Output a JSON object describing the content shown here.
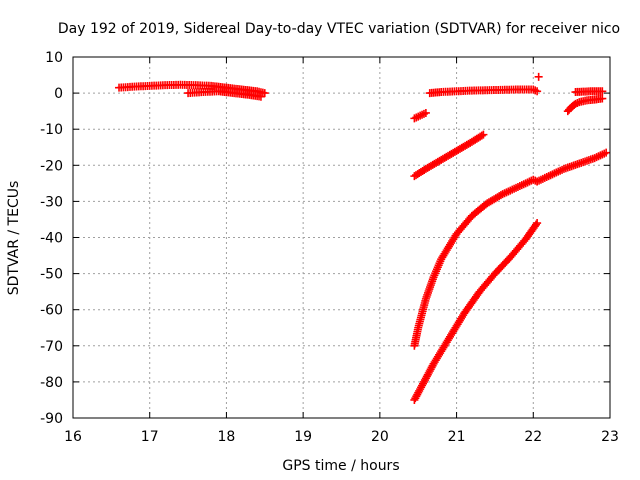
{
  "chart_data": {
    "type": "scatter",
    "title": "Day 192 of 2019, Sidereal Day-to-day VTEC variation (SDTVAR) for receiver nico",
    "xlabel": "GPS time / hours",
    "ylabel": "SDTVAR / TECUs",
    "xlim": [
      16,
      23
    ],
    "ylim": [
      -90,
      10
    ],
    "xticks": [
      16,
      17,
      18,
      19,
      20,
      21,
      22,
      23
    ],
    "yticks": [
      10,
      0,
      -10,
      -20,
      -30,
      -40,
      -50,
      -60,
      -70,
      -80,
      -90
    ],
    "grid": true,
    "marker": "plus",
    "color": "#ff0000",
    "series": [
      {
        "x": [
          16.6,
          16.8,
          17.0,
          17.2,
          17.4,
          17.6,
          17.8,
          18.0,
          18.2,
          18.4,
          18.5
        ],
        "y": [
          1.5,
          1.8,
          2.0,
          2.2,
          2.3,
          2.2,
          2.0,
          1.5,
          1.0,
          0.5,
          0.0
        ]
      },
      {
        "x": [
          17.5,
          17.7,
          17.9,
          18.1,
          18.3,
          18.45
        ],
        "y": [
          0.0,
          0.3,
          0.5,
          0.0,
          -0.5,
          -1.0
        ]
      },
      {
        "x": [
          20.45,
          20.5,
          20.55,
          20.6
        ],
        "y": [
          -7.0,
          -6.5,
          -6.0,
          -5.5
        ]
      },
      {
        "x": [
          20.65,
          20.8,
          21.0,
          21.2,
          21.4,
          21.6,
          21.8,
          22.0,
          22.05
        ],
        "y": [
          0.0,
          0.3,
          0.5,
          0.7,
          0.8,
          0.9,
          1.0,
          1.0,
          0.5
        ]
      },
      {
        "x": [
          22.07
        ],
        "y": [
          4.5
        ]
      },
      {
        "x": [
          22.45,
          22.5,
          22.55,
          22.6,
          22.7,
          22.8,
          22.9
        ],
        "y": [
          -5.0,
          -3.8,
          -3.0,
          -2.5,
          -2.0,
          -1.8,
          -1.5
        ]
      },
      {
        "x": [
          22.55,
          22.65,
          22.75,
          22.85,
          22.9
        ],
        "y": [
          0.3,
          0.4,
          0.5,
          0.5,
          0.5
        ]
      },
      {
        "x": [
          20.45,
          20.6,
          20.8,
          21.0,
          21.2,
          21.35
        ],
        "y": [
          -23.0,
          -21.0,
          -18.5,
          -16.0,
          -13.5,
          -11.5
        ]
      },
      {
        "x": [
          20.45,
          20.5,
          20.55,
          20.6,
          20.7,
          20.8,
          21.0,
          21.2,
          21.4,
          21.6,
          21.8,
          22.0,
          22.05
        ],
        "y": [
          -70.0,
          -65.0,
          -61.0,
          -57.0,
          -51.0,
          -46.0,
          -39.0,
          -34.0,
          -30.5,
          -28.0,
          -26.0,
          -24.0,
          -24.5
        ]
      },
      {
        "x": [
          22.05,
          22.2,
          22.4,
          22.6,
          22.8,
          22.95
        ],
        "y": [
          -24.5,
          -23.0,
          -21.0,
          -19.5,
          -18.0,
          -16.5
        ]
      },
      {
        "x": [
          20.45,
          20.55,
          20.7,
          20.9,
          21.1,
          21.3,
          21.5,
          21.7,
          21.9,
          22.05
        ],
        "y": [
          -85.0,
          -81.0,
          -75.0,
          -68.0,
          -61.0,
          -55.0,
          -50.0,
          -45.5,
          -40.5,
          -36.0
        ]
      }
    ]
  }
}
